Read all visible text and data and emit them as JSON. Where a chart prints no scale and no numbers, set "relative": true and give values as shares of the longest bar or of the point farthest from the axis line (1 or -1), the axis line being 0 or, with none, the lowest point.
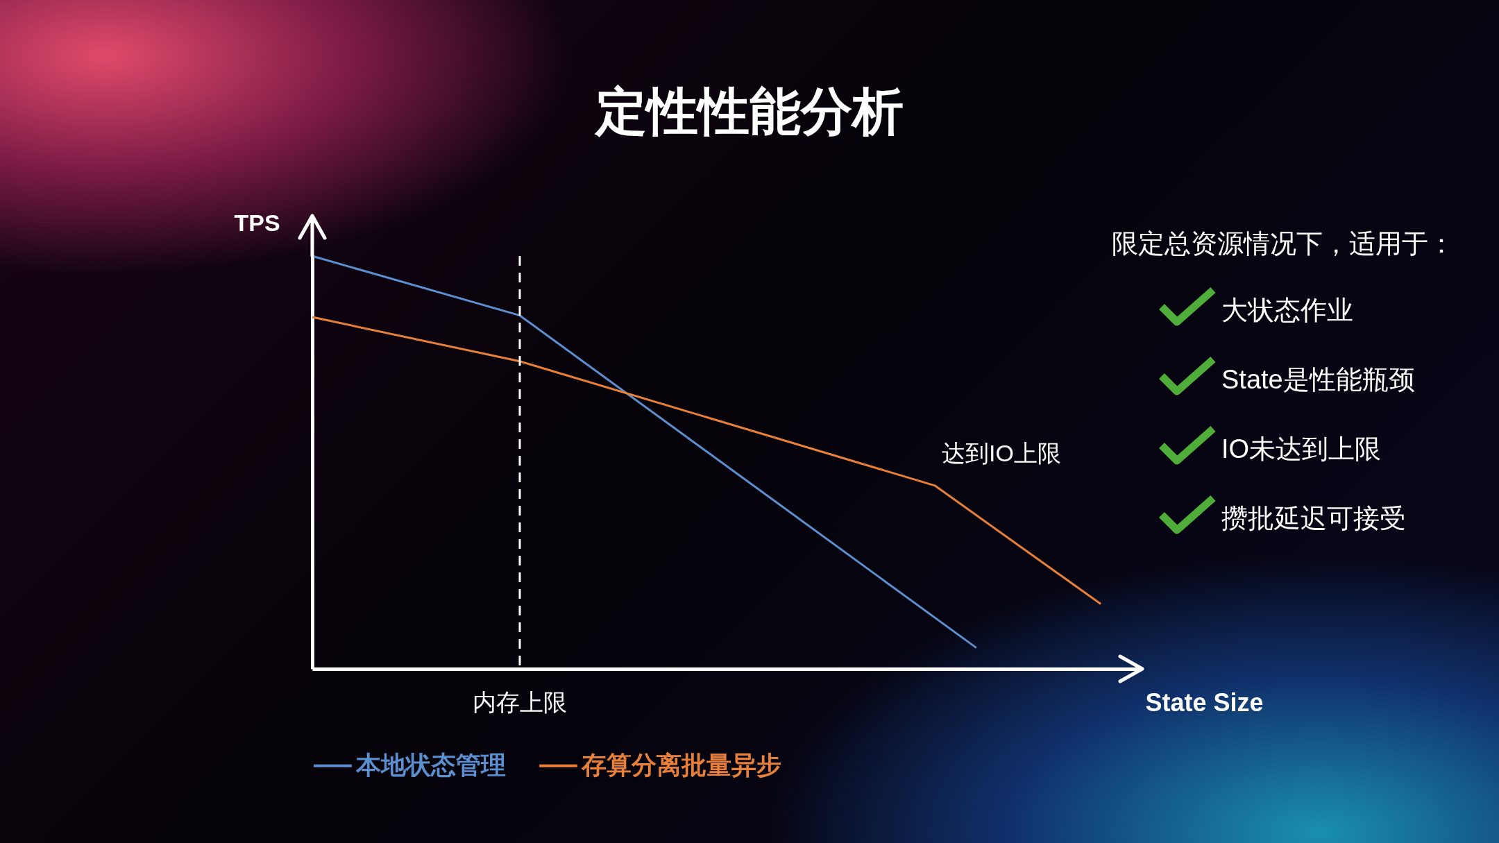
{
  "chart_data": {
    "type": "line",
    "title": "定性性能分析",
    "xlabel": "State Size",
    "ylabel": "TPS",
    "relative": true,
    "legend": "bottom left",
    "categories": [
      null,
      null,
      null,
      null,
      null,
      null,
      null,
      null,
      null,
      null,
      null,
      null,
      null,
      null,
      null,
      null,
      null,
      null,
      null,
      null,
      null
    ],
    "series": [
      {
        "name": "本地状态管理",
        "color": "#5b8fd0",
        "values": [
          1,
          null,
          null,
          null,
          null,
          0.856,
          null,
          null,
          null,
          null,
          null,
          null,
          null,
          null,
          null,
          null,
          0.051,
          null,
          null,
          null,
          null
        ]
      },
      {
        "name": "存算分离批量异步",
        "color": "#e8803a",
        "values": [
          0.852,
          null,
          null,
          null,
          null,
          0.745,
          null,
          null,
          null,
          null,
          null,
          null,
          null,
          null,
          null,
          0.444,
          null,
          null,
          null,
          0.157,
          null
        ]
      }
    ],
    "annotations": [
      "内存上限",
      "达到IO上限",
      "限定总资源情况下，适用于：",
      "大状态作业",
      "State是性能瓶颈",
      "IO未达到上限",
      "攒批延迟可接受"
    ]
  }
}
